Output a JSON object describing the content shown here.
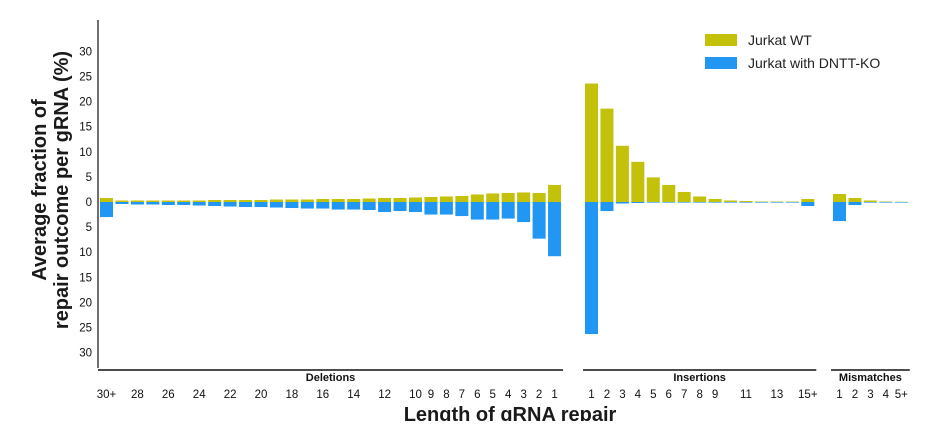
{
  "chart_data": {
    "type": "bar",
    "orientation": "mirrored",
    "ylabel": "Average fraction of\nrepair outcome per gRNA (%)",
    "xlabel": "Length of gRNA repair",
    "y_ticks_top": [
      "30",
      "25",
      "20",
      "15",
      "10",
      "5",
      "0"
    ],
    "y_ticks_bottom": [
      "5",
      "10",
      "15",
      "20",
      "25",
      "30"
    ],
    "ylim": [
      -33,
      35
    ],
    "legend": {
      "position": "top-right"
    },
    "series": [
      {
        "name": "Jurkat WT",
        "color": "#c4c10a",
        "direction": "up"
      },
      {
        "name": "Jurkat with DNTT-KO",
        "color": "#2196f3",
        "direction": "down"
      }
    ],
    "groups": [
      {
        "name": "Deletions",
        "categories": [
          "30+",
          "29",
          "28",
          "27",
          "26",
          "25",
          "24",
          "23",
          "22",
          "21",
          "20",
          "19",
          "18",
          "17",
          "16",
          "15",
          "14",
          "13",
          "12",
          "11",
          "10",
          "9",
          "8",
          "7",
          "6",
          "5",
          "4",
          "3",
          "2",
          "1"
        ],
        "tick_labels": [
          "30+",
          "28",
          "26",
          "24",
          "22",
          "20",
          "18",
          "16",
          "14",
          "12",
          "10",
          "9",
          "8",
          "7",
          "6",
          "5",
          "4",
          "3",
          "2",
          "1"
        ],
        "wt": [
          0.8,
          0.3,
          0.3,
          0.3,
          0.3,
          0.3,
          0.3,
          0.4,
          0.4,
          0.4,
          0.4,
          0.5,
          0.5,
          0.5,
          0.6,
          0.6,
          0.6,
          0.7,
          0.8,
          0.8,
          0.9,
          1.0,
          1.1,
          1.2,
          1.5,
          1.7,
          1.8,
          1.9,
          1.8,
          3.4
        ],
        "ko": [
          3.0,
          0.4,
          0.5,
          0.5,
          0.6,
          0.6,
          0.7,
          0.8,
          0.9,
          1.0,
          1.0,
          1.1,
          1.2,
          1.3,
          1.3,
          1.5,
          1.5,
          1.6,
          2.0,
          1.8,
          2.0,
          2.5,
          2.5,
          2.8,
          3.5,
          3.5,
          3.3,
          4.0,
          7.3,
          10.8
        ]
      },
      {
        "name": "Insertions",
        "categories": [
          "1",
          "2",
          "3",
          "4",
          "5",
          "6",
          "7",
          "8",
          "9",
          "10",
          "11",
          "12",
          "13",
          "14",
          "15+"
        ],
        "tick_labels": [
          "1",
          "2",
          "3",
          "4",
          "5",
          "6",
          "7",
          "8",
          "9",
          "",
          "11",
          "",
          "13",
          "",
          "15+"
        ],
        "wt": [
          23.6,
          18.6,
          11.2,
          8.0,
          4.9,
          3.4,
          2.0,
          1.1,
          0.6,
          0.3,
          0.2,
          0.1,
          0.1,
          0.1,
          0.6
        ],
        "ko": [
          26.3,
          1.8,
          0.3,
          0.2,
          0.1,
          0.1,
          0.05,
          0.05,
          0.05,
          0.05,
          0.05,
          0.05,
          0.05,
          0.05,
          0.8
        ]
      },
      {
        "name": "Mismatches",
        "categories": [
          "1",
          "2",
          "3",
          "4",
          "5+"
        ],
        "tick_labels": [
          "1",
          "2",
          "3",
          "4",
          "5+"
        ],
        "wt": [
          1.6,
          0.8,
          0.3,
          0.1,
          0.05
        ],
        "ko": [
          3.8,
          0.6,
          0.1,
          0.05,
          0.05
        ]
      }
    ]
  }
}
